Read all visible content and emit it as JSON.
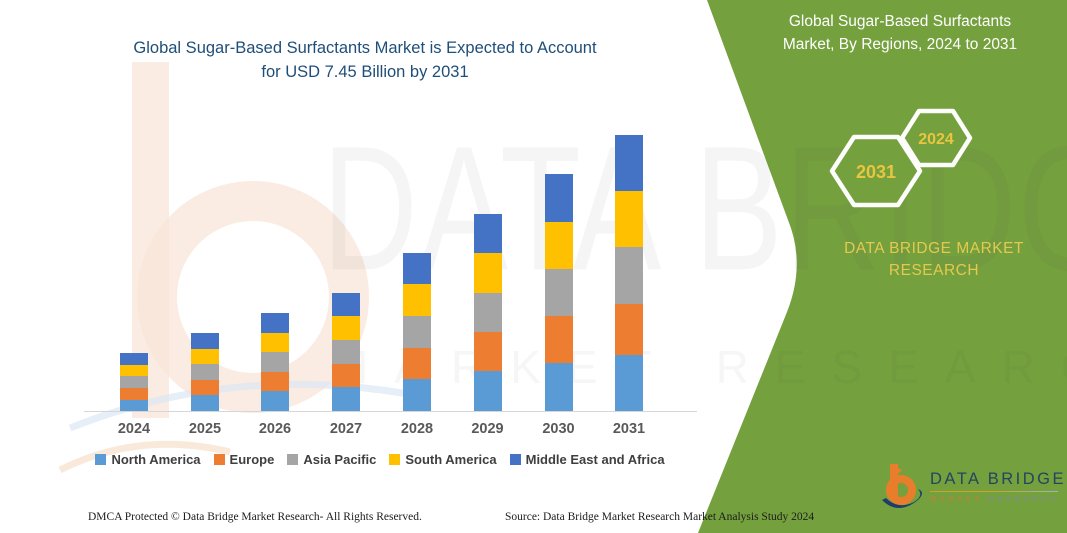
{
  "title": {
    "line1": "Global Sugar-Based Surfactants Market is Expected to Account",
    "line2": "for USD 7.45 Billion by 2031"
  },
  "side_panel": {
    "heading_line1": "Global Sugar-Based Surfactants",
    "heading_line2": "Market, By Regions, 2024 to 2031",
    "hexagon_badges": [
      {
        "label": "2031"
      },
      {
        "label": "2024"
      }
    ],
    "brand_line1": "DATA BRIDGE MARKET",
    "brand_line2": "RESEARCH",
    "accent_green": "#74A03E",
    "badge_text_color": "#E8C63F"
  },
  "watermark": {
    "text_primary": "DATA BRIDGE",
    "text_secondary": "MARKET RESEARCH"
  },
  "logo": {
    "name_text": "DATA BRIDGE",
    "market_text": "MARKET",
    "research_text": "RESEARCH"
  },
  "footer": {
    "dmca": "DMCA Protected © Data Bridge Market Research-  All Rights Reserved.",
    "source": "Source: Data Bridge Market Research  Market Analysis Study 2024"
  },
  "chart_data": {
    "type": "bar",
    "stacked": true,
    "title": "Global Sugar-Based Surfactants Market, By Regions, 2024 to 2031",
    "unit": "USD Billion",
    "categories": [
      "2024",
      "2025",
      "2026",
      "2027",
      "2028",
      "2029",
      "2030",
      "2031"
    ],
    "series": [
      {
        "name": "North America",
        "color": "#5B9BD5",
        "values": [
          0.31,
          0.42,
          0.53,
          0.64,
          0.86,
          1.07,
          1.29,
          1.52
        ]
      },
      {
        "name": "Europe",
        "color": "#ED7D31",
        "values": [
          0.32,
          0.42,
          0.53,
          0.64,
          0.85,
          1.06,
          1.27,
          1.38
        ]
      },
      {
        "name": "Asia Pacific",
        "color": "#A5A5A5",
        "values": [
          0.31,
          0.42,
          0.53,
          0.64,
          0.86,
          1.07,
          1.28,
          1.52
        ]
      },
      {
        "name": "South America",
        "color": "#FFC000",
        "values": [
          0.31,
          0.42,
          0.53,
          0.64,
          0.85,
          1.06,
          1.28,
          1.52
        ]
      },
      {
        "name": "Middle East and Africa",
        "color": "#4472C4",
        "values": [
          0.32,
          0.42,
          0.53,
          0.64,
          0.86,
          1.06,
          1.28,
          1.51
        ]
      }
    ],
    "totals": [
      1.57,
      2.1,
      2.65,
      3.2,
      4.28,
      5.32,
      6.4,
      7.45
    ],
    "ylim": [
      0,
      8
    ],
    "grid": false,
    "value_axis_visible": false,
    "legend_position": "bottom"
  }
}
